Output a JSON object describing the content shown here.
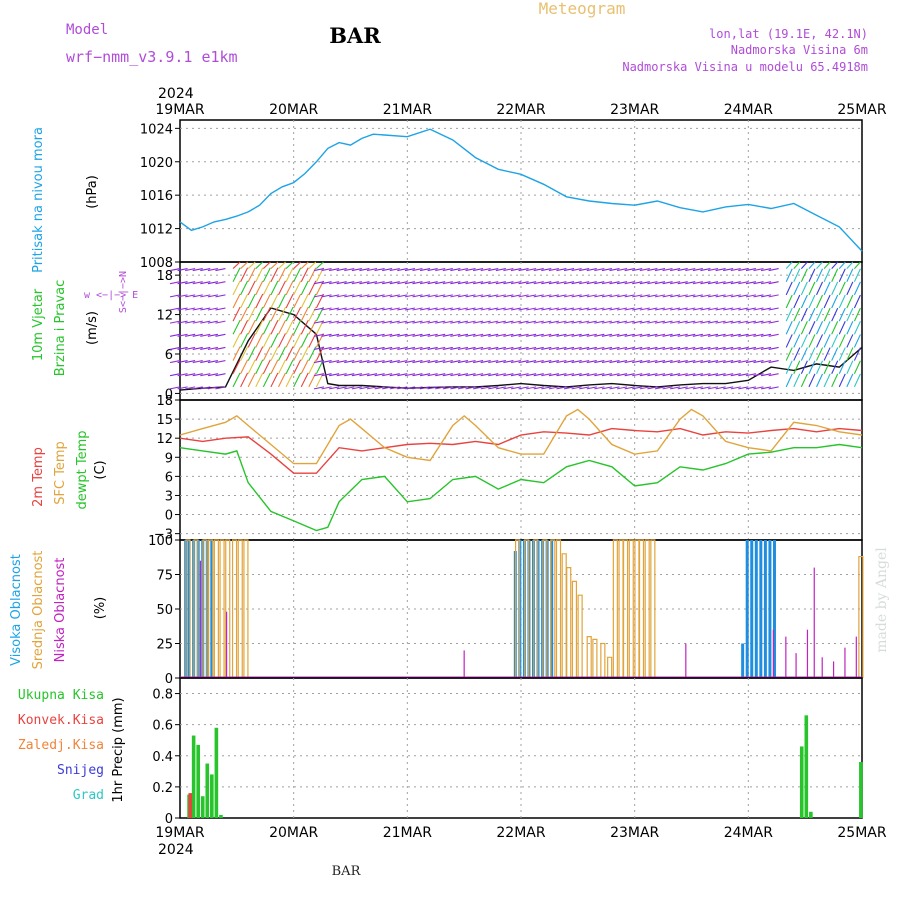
{
  "header": {
    "model_label": "Model",
    "model_name": "wrf−nmm_v3.9.1  e1km",
    "title": "BAR",
    "subtitle": "Meteogram",
    "coords": "lon,lat (19.1E, 42.1N)",
    "height": "Nadmorska Visina 6m",
    "model_height": "Nadmorska Visina u modelu 65.4918m",
    "watermark": "made by Angel",
    "footer": "BAR"
  },
  "colors": {
    "pressure": "#1ea3e6",
    "t2m": "#e8433f",
    "sfc": "#e1a43c",
    "dew": "#27c42b",
    "high": "#1f8ee0",
    "mid": "#e1a43c",
    "low": "#c023c0",
    "purple_text": "#b04cd8",
    "orange_text": "#e8c070",
    "grid": "#a0a0a0"
  },
  "time_axis": {
    "year": "2024",
    "dates": [
      "19MAR",
      "20MAR",
      "21MAR",
      "22MAR",
      "23MAR",
      "24MAR",
      "25MAR"
    ]
  },
  "panels": {
    "pressure": {
      "label": "Pritisak na nivou mora",
      "unit": "(hPa)"
    },
    "wind": {
      "label1": "10m Vjetar",
      "label2": "Brzina i Pravac",
      "unit": "(m/s)",
      "compass": "w <−|−> E",
      "compass2": "S<−|−>N"
    },
    "temp": {
      "label1": "2m Temp",
      "label2": "SFC Temp",
      "label3": "dewpt Temp",
      "unit": "(C)"
    },
    "cloud": {
      "label1": "Visoka Oblacnost",
      "label2": "Srednja Oblacnost",
      "label3": "Niska Oblacnost",
      "unit": "(%)"
    },
    "precip": {
      "label1": "Ukupna Kisa",
      "label2": "Konvek.Kisa",
      "label3": "Zaledj.Kisa",
      "label4": "Snijeg",
      "label5": "Grad",
      "unit": "1hr Precip (mm)"
    }
  },
  "chart_data": [
    {
      "type": "line",
      "title": "Pritisak na nivou mora",
      "ylabel": "(hPa)",
      "ylim": [
        1008,
        1025
      ],
      "yticks": [
        1008,
        1012,
        1016,
        1020,
        1024
      ],
      "series": [
        {
          "name": "Pritisak na nivou mora",
          "x": [
            0,
            0.1,
            0.2,
            0.3,
            0.4,
            0.5,
            0.6,
            0.7,
            0.8,
            0.9,
            1.0,
            1.1,
            1.2,
            1.3,
            1.4,
            1.5,
            1.6,
            1.7,
            1.8,
            2.0,
            2.2,
            2.4,
            2.6,
            2.8,
            3.0,
            3.2,
            3.4,
            3.6,
            3.8,
            4.0,
            4.2,
            4.4,
            4.6,
            4.8,
            5.0,
            5.2,
            5.4,
            5.6,
            5.8,
            6.0
          ],
          "y": [
            1012.8,
            1011.8,
            1012.2,
            1012.8,
            1013.1,
            1013.5,
            1014.0,
            1014.8,
            1016.2,
            1017.0,
            1017.5,
            1018.6,
            1020.0,
            1021.6,
            1022.3,
            1022.0,
            1022.8,
            1023.3,
            1023.2,
            1023.0,
            1023.9,
            1022.6,
            1020.5,
            1019.1,
            1018.5,
            1017.3,
            1015.8,
            1015.3,
            1015.0,
            1014.8,
            1015.3,
            1014.5,
            1014.0,
            1014.6,
            1014.9,
            1014.4,
            1015.0,
            1013.6,
            1012.2,
            1009.3
          ]
        }
      ]
    },
    {
      "type": "line",
      "title": "10m Vjetar Brzina i Pravac",
      "ylabel": "(m/s)",
      "ylim": [
        -1,
        20
      ],
      "yticks": [
        0,
        6,
        12,
        18
      ],
      "series": [
        {
          "name": "10m Vjetar",
          "x": [
            0,
            0.2,
            0.4,
            0.6,
            0.8,
            1.0,
            1.2,
            1.3,
            1.4,
            1.6,
            1.8,
            2.0,
            2.2,
            2.4,
            2.6,
            2.8,
            3.0,
            3.2,
            3.4,
            3.6,
            3.8,
            4.0,
            4.2,
            4.4,
            4.6,
            4.8,
            5.0,
            5.2,
            5.4,
            5.6,
            5.8,
            6.0
          ],
          "y": [
            0.5,
            0.8,
            1.0,
            8.0,
            13.0,
            12.0,
            9.0,
            1.5,
            1.2,
            1.2,
            1.0,
            0.8,
            0.9,
            1.0,
            1.0,
            1.2,
            1.5,
            1.2,
            1.0,
            1.3,
            1.5,
            1.2,
            1.0,
            1.3,
            1.5,
            1.5,
            2.0,
            4.0,
            3.5,
            4.5,
            4.0,
            7.0
          ]
        }
      ]
    },
    {
      "type": "line",
      "title": "2m Temp / SFC Temp / dewpt Temp",
      "ylabel": "(C)",
      "ylim": [
        -4,
        18
      ],
      "yticks": [
        -3,
        0,
        3,
        6,
        9,
        12,
        15,
        18
      ],
      "series": [
        {
          "name": "2m Temp",
          "x": [
            0,
            0.2,
            0.4,
            0.6,
            0.8,
            1.0,
            1.2,
            1.4,
            1.6,
            1.8,
            2.0,
            2.2,
            2.4,
            2.6,
            2.8,
            3.0,
            3.2,
            3.4,
            3.6,
            3.8,
            4.0,
            4.2,
            4.4,
            4.6,
            4.8,
            5.0,
            5.2,
            5.4,
            5.6,
            5.8,
            6.0
          ],
          "y": [
            12.0,
            11.5,
            12.0,
            12.2,
            9.5,
            6.5,
            6.5,
            10.5,
            10.0,
            10.5,
            11.0,
            11.2,
            11.0,
            11.5,
            11.0,
            12.5,
            13.0,
            12.8,
            12.5,
            13.5,
            13.2,
            13.0,
            13.5,
            12.5,
            13.0,
            12.8,
            13.2,
            13.5,
            13.0,
            13.5,
            13.2
          ]
        },
        {
          "name": "SFC Temp",
          "x": [
            0,
            0.2,
            0.4,
            0.5,
            0.6,
            0.8,
            1.0,
            1.2,
            1.4,
            1.5,
            1.6,
            1.8,
            2.0,
            2.2,
            2.4,
            2.5,
            2.6,
            2.8,
            3.0,
            3.2,
            3.4,
            3.5,
            3.6,
            3.8,
            4.0,
            4.2,
            4.4,
            4.5,
            4.6,
            4.8,
            5.0,
            5.2,
            5.4,
            5.6,
            5.8,
            6.0
          ],
          "y": [
            12.5,
            13.5,
            14.5,
            15.5,
            14.0,
            11.0,
            8.0,
            8.0,
            14.0,
            15.0,
            13.5,
            10.5,
            9.0,
            8.5,
            14.0,
            15.5,
            14.0,
            10.5,
            9.5,
            9.5,
            15.5,
            16.5,
            15.0,
            11.0,
            9.5,
            10.0,
            15.0,
            16.5,
            15.5,
            11.5,
            10.5,
            10.0,
            14.5,
            14.0,
            13.0,
            12.5
          ]
        },
        {
          "name": "dewpt Temp",
          "x": [
            0,
            0.2,
            0.4,
            0.5,
            0.6,
            0.8,
            1.0,
            1.2,
            1.3,
            1.4,
            1.6,
            1.8,
            2.0,
            2.2,
            2.4,
            2.6,
            2.8,
            3.0,
            3.2,
            3.4,
            3.6,
            3.8,
            4.0,
            4.2,
            4.4,
            4.6,
            4.8,
            5.0,
            5.2,
            5.4,
            5.6,
            5.8,
            6.0
          ],
          "y": [
            10.5,
            10.0,
            9.5,
            10.0,
            5.0,
            0.5,
            -1.0,
            -2.5,
            -2.0,
            2.0,
            5.5,
            6.0,
            2.0,
            2.5,
            5.5,
            6.0,
            4.0,
            5.5,
            5.0,
            7.5,
            8.5,
            7.5,
            4.5,
            5.0,
            7.5,
            7.0,
            8.0,
            9.5,
            9.8,
            10.5,
            10.5,
            11.0,
            10.5
          ]
        }
      ]
    },
    {
      "type": "bar",
      "title": "Visoka / Srednja / Niska Oblacnost",
      "ylabel": "(%)",
      "ylim": [
        0,
        100
      ],
      "yticks": [
        0,
        25,
        50,
        75,
        100
      ],
      "series": [
        {
          "name": "Visoka Oblacnost",
          "x": [
            0.05,
            0.08,
            0.12,
            0.16,
            0.2,
            0.24,
            0.28,
            2.95,
            2.99,
            3.03,
            3.07,
            3.11,
            3.15,
            3.19,
            3.23,
            3.27,
            4.95,
            4.99,
            5.03,
            5.07,
            5.11,
            5.15,
            5.19,
            5.23
          ],
          "y": [
            100,
            100,
            100,
            100,
            100,
            100,
            100,
            92,
            100,
            100,
            100,
            100,
            100,
            100,
            100,
            100,
            25,
            100,
            100,
            100,
            100,
            100,
            100,
            100
          ]
        },
        {
          "name": "Srednja Oblacnost",
          "x": [
            0.07,
            0.14,
            0.22,
            0.27,
            0.32,
            0.37,
            0.42,
            0.48,
            0.53,
            0.58,
            2.97,
            3.05,
            3.13,
            3.21,
            3.28,
            3.33,
            3.38,
            3.42,
            3.47,
            3.52,
            3.6,
            3.65,
            3.72,
            3.78,
            3.83,
            3.88,
            3.92,
            3.97,
            4.02,
            4.06,
            4.11,
            4.16,
            5.99
          ],
          "y": [
            100,
            100,
            100,
            100,
            100,
            100,
            100,
            100,
            100,
            100,
            100,
            100,
            100,
            100,
            100,
            100,
            90,
            80,
            70,
            60,
            30,
            28,
            25,
            15,
            100,
            100,
            100,
            100,
            100,
            100,
            100,
            100,
            88
          ]
        },
        {
          "name": "Niska Oblacnost",
          "x": [
            0.18,
            0.41,
            2.5,
            4.45,
            5.22,
            5.33,
            5.42,
            5.52,
            5.58,
            5.65,
            5.75,
            5.85,
            5.95
          ],
          "y": [
            85,
            48,
            20,
            25,
            35,
            30,
            18,
            35,
            80,
            15,
            12,
            22,
            30
          ]
        }
      ]
    },
    {
      "type": "bar",
      "title": "1hr Precip",
      "ylabel": "1hr Precip (mm)",
      "ylim": [
        0,
        0.9
      ],
      "yticks": [
        0,
        0.2,
        0.4,
        0.6,
        0.8
      ],
      "series": [
        {
          "name": "Ukupna Kisa",
          "x": [
            0.08,
            0.12,
            0.16,
            0.2,
            0.24,
            0.28,
            0.32,
            0.36,
            5.47,
            5.51,
            5.55,
            5.99
          ],
          "y": [
            0.15,
            0.53,
            0.47,
            0.14,
            0.35,
            0.28,
            0.58,
            0.02,
            0.46,
            0.66,
            0.04,
            0.36
          ]
        },
        {
          "name": "Konvek.Kisa",
          "x": [
            0.09
          ],
          "y": [
            0.16
          ]
        },
        {
          "name": "Zaledj.Kisa",
          "x": [],
          "y": []
        },
        {
          "name": "Snijeg",
          "x": [],
          "y": []
        },
        {
          "name": "Grad",
          "x": [],
          "y": []
        }
      ]
    }
  ]
}
